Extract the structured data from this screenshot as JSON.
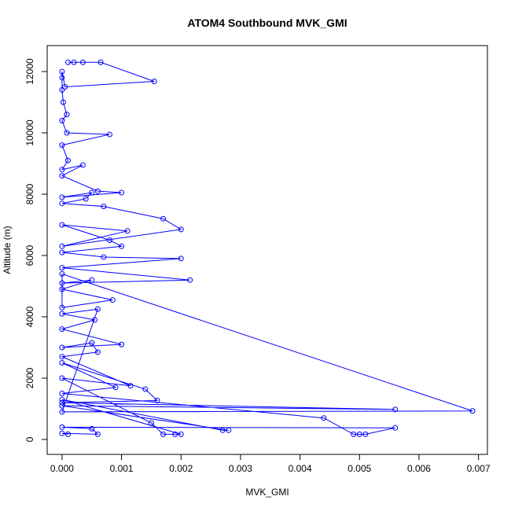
{
  "chart_data": {
    "type": "line",
    "title": "ATOM4 Southbound MVK_GMI",
    "x_label": "MVK_GMI",
    "y_label": "Altitude (m)",
    "color": "#0000ff",
    "xlim": [
      -0.00025,
      0.00715
    ],
    "ylim": [
      -487,
      12846
    ],
    "xticks": [
      {
        "value": 0,
        "label": "0.000"
      },
      {
        "value": 0.001,
        "label": "0.001"
      },
      {
        "value": 0.002,
        "label": "0.002"
      },
      {
        "value": 0.003,
        "label": "0.003"
      },
      {
        "value": 0.004,
        "label": "0.004"
      },
      {
        "value": 0.005,
        "label": "0.005"
      },
      {
        "value": 0.006,
        "label": "0.006"
      },
      {
        "value": 0.007,
        "label": "0.007"
      }
    ],
    "yticks": [
      0,
      2000,
      4000,
      6000,
      8000,
      10000,
      12000
    ],
    "x": [
      0.0001,
      0.0002,
      0.00035,
      0.00065,
      0.00155,
      5e-05,
      0.0,
      0.0,
      0.0,
      2e-05,
      8e-05,
      0.0,
      8e-05,
      0.0008,
      0.0,
      0.0001,
      0.0,
      0.00035,
      0.0,
      0.0006,
      0.001,
      0.0,
      0.0005,
      0.0004,
      0.0,
      0.0007,
      0.0017,
      0.002,
      0.0,
      0.0011,
      0.0,
      0.0008,
      0.001,
      0.0,
      0.0007,
      0.002,
      0.0,
      0.00215,
      0.0,
      0.0005,
      0.0,
      0.00085,
      0.0,
      0.0,
      0.0069,
      0.0,
      0.0006,
      0.0,
      0.00055,
      0.0,
      0.001,
      0.0,
      0.0005,
      0.0006,
      0.0,
      0.00115,
      0.0,
      0.0015,
      0.0017,
      0.0019,
      0.002,
      0.0,
      0.0027,
      0.0028,
      0.0,
      0.0056,
      0.0,
      0.0016,
      0.0014,
      0.0,
      0.0009,
      0.0,
      0.0044,
      0.0049,
      0.005,
      0.0051,
      0.0056,
      0.0,
      0.0005,
      0.0006,
      0.0,
      0.0001
    ],
    "values": [
      12300,
      12300,
      12300,
      12300,
      11680,
      11500,
      12000,
      11800,
      11400,
      11000,
      10600,
      10400,
      10000,
      9950,
      9600,
      9100,
      8800,
      8950,
      8600,
      8100,
      8050,
      7900,
      8050,
      7850,
      7700,
      7600,
      7200,
      6850,
      6300,
      6800,
      7000,
      6500,
      6300,
      6100,
      5950,
      5900,
      5600,
      5200,
      5100,
      5200,
      4900,
      4550,
      4300,
      5400,
      930,
      900,
      4250,
      4100,
      3900,
      3600,
      3100,
      3000,
      3150,
      2850,
      2700,
      1750,
      2000,
      540,
      170,
      170,
      170,
      1300,
      300,
      300,
      1100,
      980,
      1200,
      1270,
      1640,
      2500,
      1700,
      1500,
      700,
      170,
      170,
      170,
      380,
      400,
      350,
      170,
      200,
      170
    ]
  }
}
